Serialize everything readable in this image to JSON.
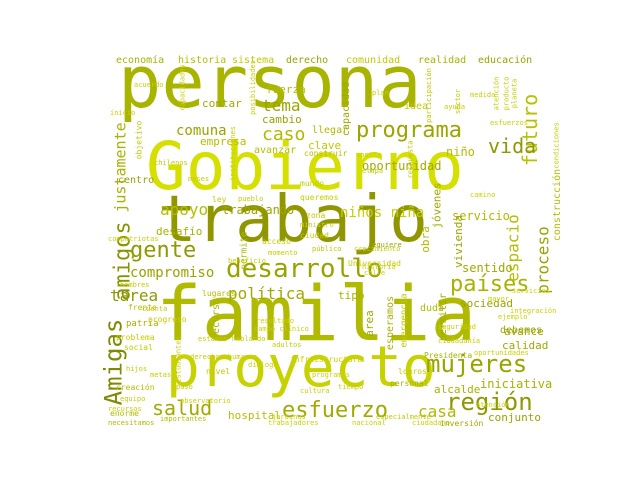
{
  "words": [
    {
      "text": "persona",
      "color": "#a8b400"
    },
    {
      "text": "Gobierno",
      "color": "#d6e000"
    },
    {
      "text": "trabajo",
      "color": "#8f9600"
    },
    {
      "text": "familia",
      "color": "#b0ba00"
    },
    {
      "text": "proyecto",
      "color": "#c8d200"
    },
    {
      "text": "desarrollo",
      "color": "#9aa200"
    },
    {
      "text": "programa",
      "color": "#9ca400"
    },
    {
      "text": "mujeres",
      "color": "#9aa400"
    },
    {
      "text": "región",
      "color": "#8e9800"
    },
    {
      "text": "esfuerzo",
      "color": "#a0aa00"
    },
    {
      "text": "Amigas",
      "color": "#7f8a00"
    },
    {
      "text": "amigos",
      "color": "#8a9400"
    },
    {
      "text": "gente",
      "color": "#8f9a00"
    },
    {
      "text": "países",
      "color": "#a8b200"
    },
    {
      "text": "futuro",
      "color": "#b8c200"
    },
    {
      "text": "salud",
      "color": "#a0aa00"
    },
    {
      "text": "vida",
      "color": "#8e9800"
    },
    {
      "text": "caso",
      "color": "#b0ba00"
    },
    {
      "text": "tema",
      "color": "#9aa400"
    },
    {
      "text": "política",
      "color": "#a0aa00"
    },
    {
      "text": "apoyo",
      "color": "#b4be00"
    },
    {
      "text": "compromiso",
      "color": "#9aa400"
    },
    {
      "text": "tarea",
      "color": "#8e9800"
    },
    {
      "text": "comuna",
      "color": "#9aa400"
    },
    {
      "text": "justamente",
      "color": "#a8b200"
    },
    {
      "text": "espacio",
      "color": "#b4be00"
    },
    {
      "text": "proceso",
      "color": "#9aa400"
    },
    {
      "text": "casa",
      "color": "#b0ba00"
    },
    {
      "text": "niños niña",
      "color": "#c4ce00"
    },
    {
      "text": "trabajando",
      "color": "#9aa400"
    },
    {
      "text": "desafío",
      "color": "#a8b200"
    },
    {
      "text": "empresa",
      "color": "#b4be00"
    },
    {
      "text": "oportunidad",
      "color": "#a0aa00"
    },
    {
      "text": "niño",
      "color": "#b4be00"
    },
    {
      "text": "servicio",
      "color": "#b0ba00"
    },
    {
      "text": "sentido",
      "color": "#a0aa00"
    },
    {
      "text": "sociedad",
      "color": "#9aa400"
    },
    {
      "text": "iniciativa",
      "color": "#a8b200"
    },
    {
      "text": "avance",
      "color": "#a0aa00"
    },
    {
      "text": "conjunto",
      "color": "#9aa400"
    },
    {
      "text": "alcalde",
      "color": "#a8b200"
    },
    {
      "text": "debemos",
      "color": "#9aa400"
    },
    {
      "text": "calidad",
      "color": "#a0aa00"
    },
    {
      "text": "hospital",
      "color": "#b4be00"
    },
    {
      "text": "esperamos",
      "color": "#a8b200"
    },
    {
      "text": "cambio",
      "color": "#9aa400"
    },
    {
      "text": "contar",
      "color": "#a0aa00"
    },
    {
      "text": "fuerza",
      "color": "#b4be00"
    },
    {
      "text": "clave",
      "color": "#c0ca00"
    },
    {
      "text": "llegar",
      "color": "#b0ba00"
    },
    {
      "text": "tipo",
      "color": "#a8b200"
    },
    {
      "text": "centro",
      "color": "#9aa400"
    },
    {
      "text": "obra",
      "color": "#b0ba00"
    },
    {
      "text": "jóvenes",
      "color": "#a0aa00"
    },
    {
      "text": "vivienda",
      "color": "#9aa400"
    },
    {
      "text": "permitir",
      "color": "#a0aa00"
    },
    {
      "text": "capacidad",
      "color": "#a0aa00"
    },
    {
      "text": "construcción",
      "color": "#b4be00"
    },
    {
      "text": "economía",
      "color": "#a8b200"
    },
    {
      "text": "historia",
      "color": "#b4be00"
    },
    {
      "text": "sistema",
      "color": "#c0ca00"
    },
    {
      "text": "derecho",
      "color": "#9aa400"
    },
    {
      "text": "comunidad",
      "color": "#c0ca00"
    },
    {
      "text": "realidad",
      "color": "#a8b200"
    },
    {
      "text": "educación",
      "color": "#9aa400"
    },
    {
      "text": "patria",
      "color": "#a8b200"
    },
    {
      "text": "duda",
      "color": "#b0ba00"
    },
    {
      "text": "área",
      "color": "#a0aa00"
    },
    {
      "text": "mundo",
      "color": "#c4ce00"
    },
    {
      "text": "recurso",
      "color": "#a8b200"
    },
    {
      "text": "permite",
      "color": "#b0ba00"
    },
    {
      "text": "idea",
      "color": "#c0ca00"
    },
    {
      "text": "queremos",
      "color": "#c4ce00"
    },
    {
      "text": "nivel",
      "color": "#c0ca00"
    },
    {
      "text": "social",
      "color": "#c0ca00"
    },
    {
      "text": "problema",
      "color": "#c4ce00"
    },
    {
      "text": "ley",
      "color": "#c4ce00"
    },
    {
      "text": "zona",
      "color": "#c0ca00"
    },
    {
      "text": "ciudad",
      "color": "#c4ce00"
    },
    {
      "text": "ciudadano",
      "color": "#c8d200"
    },
    {
      "text": "lugares",
      "color": "#b4be00"
    },
    {
      "text": "acceso",
      "color": "#c4ce00"
    },
    {
      "text": "aporte",
      "color": "#c8d200"
    },
    {
      "text": "Presidenta",
      "color": "#a8b200"
    },
    {
      "text": "momento",
      "color": "#c4ce00"
    },
    {
      "text": "creación",
      "color": "#b4be00"
    },
    {
      "text": "inversión",
      "color": "#a0aa00"
    },
    {
      "text": "logros",
      "color": "#c4ce00"
    },
    {
      "text": "nacional",
      "color": "#c8d200"
    },
    {
      "text": "diálogo",
      "color": "#c8d200"
    },
    {
      "text": "especialmente",
      "color": "#c0ca00"
    },
    {
      "text": "necesitamos",
      "color": "#b0ba00"
    },
    {
      "text": "importantes",
      "color": "#b4be00"
    },
    {
      "text": "enorme",
      "color": "#b0ba00"
    },
    {
      "text": "paso",
      "color": "#c4ce00"
    },
    {
      "text": "requiere",
      "color": "#9aa400"
    },
    {
      "text": "emergencia",
      "color": "#c0ca00"
    },
    {
      "text": "infraestructura",
      "color": "#c8d200"
    },
    {
      "text": "participación",
      "color": "#c0ca00"
    },
    {
      "text": "sector",
      "color": "#c4ce00"
    },
    {
      "text": "atención",
      "color": "#c4ce00"
    },
    {
      "text": "producto",
      "color": "#c4ce00"
    },
    {
      "text": "planeta",
      "color": "#c4ce00"
    },
    {
      "text": "personal",
      "color": "#a8b200"
    },
    {
      "text": "hijos",
      "color": "#c4ce00"
    },
    {
      "text": "construir",
      "color": "#b4be00"
    },
    {
      "text": "avanzar",
      "color": "#b4be00"
    },
    {
      "text": "público",
      "color": "#c0ca00"
    },
    {
      "text": "meses",
      "color": "#c4ce00"
    },
    {
      "text": "crecimiento",
      "color": "#c4ce00"
    },
    {
      "text": "frente",
      "color": "#b4be00"
    },
    {
      "text": "respuesta",
      "color": "#c0ca00"
    },
    {
      "text": "pueblo",
      "color": "#c4ce00"
    },
    {
      "text": "instituciones",
      "color": "#c8d200"
    },
    {
      "text": "cuenta",
      "color": "#c4ce00"
    },
    {
      "text": "Universidad",
      "color": "#c4ce00"
    },
    {
      "text": "objetivo",
      "color": "#c0ca00"
    },
    {
      "text": "condiciones",
      "color": "#c4ce00"
    },
    {
      "text": "ministro",
      "color": "#c8d200"
    },
    {
      "text": "beneficio",
      "color": "#c4ce00"
    },
    {
      "text": "chilenos",
      "color": "#c4ce00"
    },
    {
      "text": "posibilidades",
      "color": "#c8d200"
    },
    {
      "text": "calle",
      "color": "#c4ce00"
    },
    {
      "text": "capacidades",
      "color": "#c8d200"
    },
    {
      "text": "compatriotas",
      "color": "#c8d200"
    },
    {
      "text": "integración",
      "color": "#c8d200"
    },
    {
      "text": "metas",
      "color": "#c4ce00"
    },
    {
      "text": "equipo",
      "color": "#c4ce00"
    },
    {
      "text": "tiempo",
      "color": "#c4ce00"
    },
    {
      "text": "hombres",
      "color": "#c4ce00"
    },
    {
      "text": "derechos humanos",
      "color": "#c4ce00"
    },
    {
      "text": "estudiantes",
      "color": "#c4ce00"
    },
    {
      "text": "observatorio",
      "color": "#c8d200"
    },
    {
      "text": "estamos hablando",
      "color": "#c4ce00"
    },
    {
      "text": "seguridad",
      "color": "#c8d200"
    },
    {
      "text": "ciudadanía",
      "color": "#c4ce00"
    },
    {
      "text": "ayuda",
      "color": "#c4ce00"
    },
    {
      "text": "etapa",
      "color": "#c4ce00"
    },
    {
      "text": "esfuerzos",
      "color": "#c8d200"
    },
    {
      "text": "ejemplo",
      "color": "#c8d200"
    },
    {
      "text": "oportunidades",
      "color": "#c8d200"
    },
    {
      "text": "trabajadores",
      "color": "#c8d200"
    },
    {
      "text": "recursos",
      "color": "#c8d200"
    },
    {
      "text": "plan",
      "color": "#c4ce00"
    },
    {
      "text": "acuerdo",
      "color": "#c8d200"
    },
    {
      "text": "programas",
      "color": "#c8d200"
    },
    {
      "text": "campo clínico",
      "color": "#c8d200"
    },
    {
      "text": "progreso",
      "color": "#c4ce00"
    },
    {
      "text": "resultado",
      "color": "#c8d200"
    },
    {
      "text": "adultos",
      "color": "#c4ce00"
    },
    {
      "text": "atención",
      "color": "#c8d200"
    },
    {
      "text": "jardines",
      "color": "#c8d200"
    },
    {
      "text": "camino",
      "color": "#c8d200"
    },
    {
      "text": "servicios",
      "color": "#c8d200"
    },
    {
      "text": "medida",
      "color": "#c8d200"
    },
    {
      "text": "inicio",
      "color": "#c8d200"
    },
    {
      "text": "mayor",
      "color": "#c8d200"
    },
    {
      "text": "historia",
      "color": "#c8d200"
    },
    {
      "text": "cultura",
      "color": "#c8d200"
    }
  ]
}
